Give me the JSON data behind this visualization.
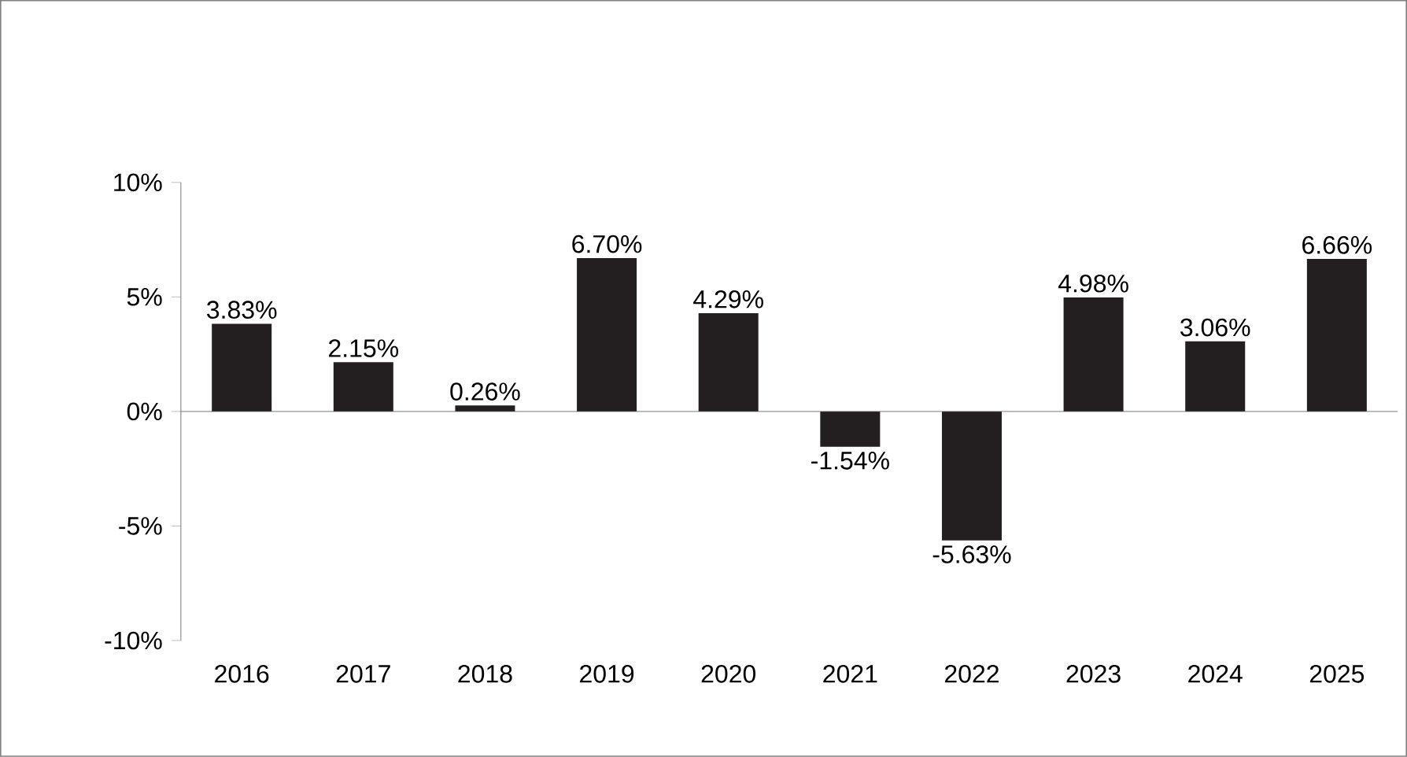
{
  "chart_data": {
    "type": "bar",
    "categories": [
      "2016",
      "2017",
      "2018",
      "2019",
      "2020",
      "2021",
      "2022",
      "2023",
      "2024",
      "2025"
    ],
    "values": [
      3.83,
      2.15,
      0.26,
      6.7,
      4.29,
      -1.54,
      -5.63,
      4.98,
      3.06,
      6.66
    ],
    "value_labels": [
      "3.83%",
      "2.15%",
      "0.26%",
      "6.70%",
      "4.29%",
      "-1.54%",
      "-5.63%",
      "4.98%",
      "3.06%",
      "6.66%"
    ],
    "color": "#231f20",
    "ylim": [
      -10,
      10
    ],
    "yticks": [
      {
        "value": -10,
        "label": "-10%"
      },
      {
        "value": -5,
        "label": "-5%"
      },
      {
        "value": 0,
        "label": "0%"
      },
      {
        "value": 5,
        "label": "5%"
      },
      {
        "value": 10,
        "label": "10%"
      }
    ]
  }
}
